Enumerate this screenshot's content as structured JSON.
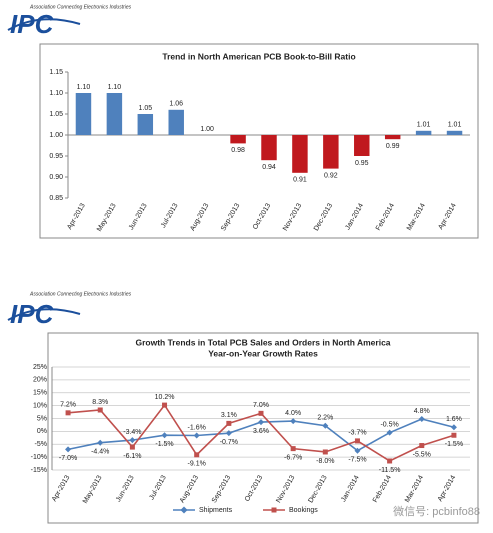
{
  "logos": [
    {
      "tagline": "Association Connecting Electronics Industries",
      "name": "IPC"
    },
    {
      "tagline": "Association Connecting Electronics Industries",
      "name": "IPC"
    }
  ],
  "watermark": "微信号: pcbinfo88",
  "chart_data": [
    {
      "type": "bar",
      "title": "Trend in North American PCB Book-to-Bill Ratio",
      "categories": [
        "Apr-2013",
        "May-2013",
        "Jun-2013",
        "Jul-2013",
        "Aug-2013",
        "Sep-2013",
        "Oct-2013",
        "Nov-2013",
        "Dec-2013",
        "Jan-2014",
        "Feb-2014",
        "Mar-2014",
        "Apr-2014"
      ],
      "values": [
        1.1,
        1.1,
        1.05,
        1.06,
        1,
        0.98,
        0.94,
        0.91,
        0.92,
        0.95,
        0.99,
        1.01,
        1.01
      ],
      "value_labels": [
        "1.10",
        "1.10",
        "1.05",
        "1.06",
        "1.00",
        "0.98",
        "0.94",
        "0.91",
        "0.92",
        "0.95",
        "0.99",
        "1.01",
        "1.01"
      ],
      "colors": [
        "#4f81bd",
        "#4f81bd",
        "#4f81bd",
        "#4f81bd",
        "#4f81bd",
        "#c0191e",
        "#c0191e",
        "#c0191e",
        "#c0191e",
        "#c0191e",
        "#c0191e",
        "#4f81bd",
        "#4f81bd"
      ],
      "baseline": 1,
      "ylim": [
        0.85,
        1.15
      ],
      "yticks": [
        0.85,
        {
          "value": 0.9,
          "label": "0.90"
        },
        0.95,
        {
          "value": 1,
          "label": "1.00"
        },
        1.05,
        {
          "value": 1.1,
          "label": "1.10"
        },
        1.15
      ],
      "grid": false
    },
    {
      "type": "line",
      "title": "Growth Trends in Total PCB Sales and Orders in North America",
      "subtitle": "Year-on-Year Growth Rates",
      "categories": [
        "Apr-2013",
        "May-2013",
        "Jun-2013",
        "Jul-2013",
        "Aug-2013",
        "Sep-2013",
        "Oct-2013",
        "Nov-2013",
        "Dec-2013",
        "Jan-2014",
        "Feb-2014",
        "Mar-2014",
        "Apr-2014"
      ],
      "series": [
        {
          "name": "Shipments",
          "color": "#4f81bd",
          "marker": "diamond",
          "values": [
            -7.0,
            -4.4,
            -3.4,
            -1.5,
            -1.6,
            -0.7,
            3.6,
            4.0,
            2.2,
            -7.5,
            -0.5,
            4.8,
            1.6
          ],
          "value_labels": [
            "-7.0%",
            "-4.4%",
            "-3.4%",
            "-1.5%",
            "-1.6%",
            "-0.7%",
            "3.6%",
            "4.0%",
            "2.2%",
            "-7.5%",
            "-0.5%",
            "4.8%",
            "1.6%"
          ]
        },
        {
          "name": "Bookings",
          "color": "#c0504d",
          "marker": "square",
          "values": [
            7.2,
            8.3,
            -6.1,
            10.2,
            -9.1,
            3.1,
            7.0,
            -6.7,
            -8.0,
            -3.7,
            -11.5,
            -5.5,
            -1.5
          ],
          "value_labels": [
            "7.2%",
            "8.3%",
            "-6.1%",
            "10.2%",
            "-9.1%",
            "3.1%",
            "7.0%",
            "-6.7%",
            "-8.0%",
            "-3.7%",
            "-11.5%",
            "-5.5%",
            "-1.5%"
          ]
        }
      ],
      "ylim": [
        -15,
        25
      ],
      "yticks": [
        {
          "value": -15,
          "label": "-15%"
        },
        {
          "value": -10,
          "label": "-10%"
        },
        {
          "value": -5,
          "label": "-5%"
        },
        {
          "value": 0,
          "label": "0%"
        },
        {
          "value": 5,
          "label": "5%"
        },
        {
          "value": 10,
          "label": "10%"
        },
        {
          "value": 15,
          "label": "15%"
        },
        {
          "value": 20,
          "label": "20%"
        },
        {
          "value": 25,
          "label": "25%"
        }
      ],
      "grid": true,
      "legend": "bottom"
    }
  ]
}
